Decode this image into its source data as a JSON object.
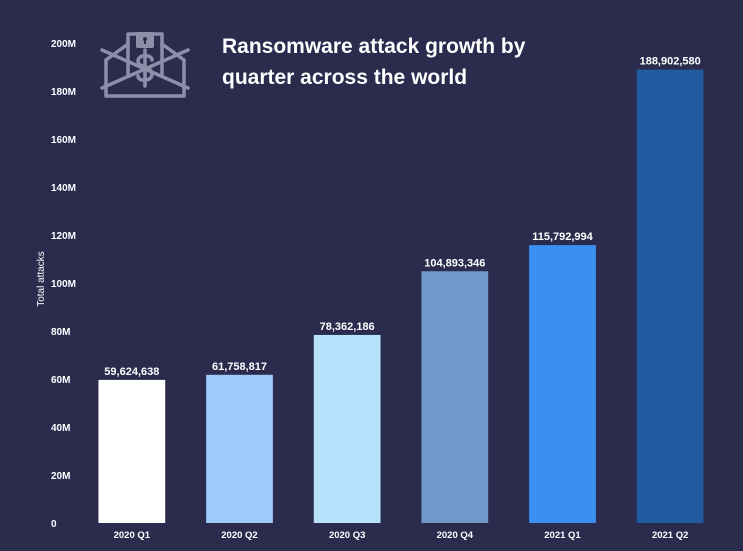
{
  "chart_data": {
    "type": "bar",
    "title": "Ransomware attack growth by quarter across the world",
    "xlabel": "",
    "ylabel": "Total attacks",
    "ylim": [
      0,
      200000000
    ],
    "yticks": [
      0,
      20000000,
      40000000,
      60000000,
      80000000,
      100000000,
      120000000,
      140000000,
      160000000,
      180000000,
      200000000
    ],
    "ytick_labels": [
      "0",
      "20M",
      "40M",
      "60M",
      "80M",
      "100M",
      "120M",
      "140M",
      "160M",
      "180M",
      "200M"
    ],
    "categories": [
      "2020 Q1",
      "2020 Q2",
      "2020 Q3",
      "2020 Q4",
      "2021 Q1",
      "2021 Q2"
    ],
    "values": [
      59624638,
      61758817,
      78362186,
      104893346,
      115792994,
      188902580
    ],
    "value_labels": [
      "59,624,638",
      "61,758,817",
      "78,362,186",
      "104,893,346",
      "115,792,994",
      "188,902,580"
    ],
    "bar_colors": [
      "#ffffff",
      "#9fcbfa",
      "#b6e2fb",
      "#7298c9",
      "#3b8ff0",
      "#225aa0"
    ],
    "grid": false,
    "legend": "none"
  },
  "logo": {
    "icon": "ransomware-envelope-icon"
  },
  "colors": {
    "background": "#2a2b4d",
    "text": "#ffffff",
    "icon": "#8d8faa"
  }
}
